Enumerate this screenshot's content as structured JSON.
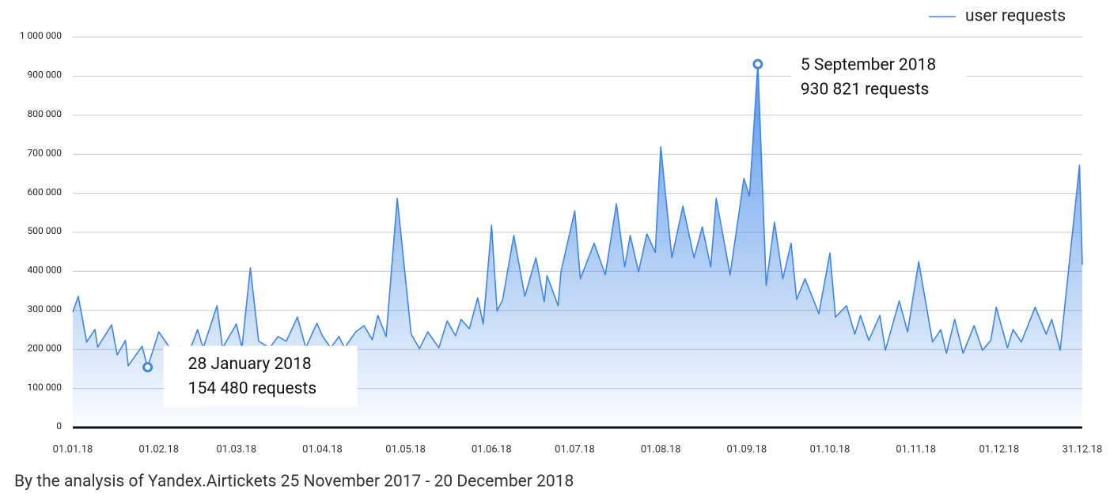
{
  "chart_data": {
    "type": "area",
    "footer": "By the analysis of Yandex.Airtickets 25 November 2017 - 20 December 2018",
    "x": [
      "2018-01-01",
      "2018-01-03",
      "2018-01-06",
      "2018-01-09",
      "2018-01-10",
      "2018-01-15",
      "2018-01-17",
      "2018-01-20",
      "2018-01-21",
      "2018-01-26",
      "2018-01-28",
      "2018-02-01",
      "2018-02-05",
      "2018-02-09",
      "2018-02-12",
      "2018-02-15",
      "2018-02-17",
      "2018-02-22",
      "2018-02-24",
      "2018-03-01",
      "2018-03-03",
      "2018-03-06",
      "2018-03-09",
      "2018-03-13",
      "2018-03-16",
      "2018-03-19",
      "2018-03-23",
      "2018-03-26",
      "2018-03-30",
      "2018-04-01",
      "2018-04-04",
      "2018-04-07",
      "2018-04-09",
      "2018-04-13",
      "2018-04-16",
      "2018-04-19",
      "2018-04-21",
      "2018-04-24",
      "2018-04-28",
      "2018-05-03",
      "2018-05-06",
      "2018-05-09",
      "2018-05-13",
      "2018-05-16",
      "2018-05-19",
      "2018-05-21",
      "2018-05-24",
      "2018-05-27",
      "2018-05-29",
      "2018-06-01",
      "2018-06-03",
      "2018-06-05",
      "2018-06-09",
      "2018-06-13",
      "2018-06-17",
      "2018-06-20",
      "2018-06-21",
      "2018-06-25",
      "2018-06-26",
      "2018-07-01",
      "2018-07-03",
      "2018-07-08",
      "2018-07-12",
      "2018-07-16",
      "2018-07-19",
      "2018-07-21",
      "2018-07-24",
      "2018-07-27",
      "2018-07-30",
      "2018-08-01",
      "2018-08-05",
      "2018-08-09",
      "2018-08-13",
      "2018-08-16",
      "2018-08-19",
      "2018-08-21",
      "2018-08-26",
      "2018-08-31",
      "2018-09-02",
      "2018-09-05",
      "2018-09-08",
      "2018-09-11",
      "2018-09-14",
      "2018-09-17",
      "2018-09-19",
      "2018-09-22",
      "2018-09-27",
      "2018-10-01",
      "2018-10-03",
      "2018-10-07",
      "2018-10-10",
      "2018-10-12",
      "2018-10-15",
      "2018-10-19",
      "2018-10-21",
      "2018-10-26",
      "2018-10-29",
      "2018-11-02",
      "2018-11-07",
      "2018-11-10",
      "2018-11-12",
      "2018-11-15",
      "2018-11-18",
      "2018-11-22",
      "2018-11-25",
      "2018-11-28",
      "2018-11-30",
      "2018-12-04",
      "2018-12-06",
      "2018-12-09",
      "2018-12-14",
      "2018-12-18",
      "2018-12-20",
      "2018-12-23",
      "2018-12-30",
      "2018-12-31"
    ],
    "series": [
      {
        "name": "user requests",
        "color": "#3d85e6",
        "values": [
          296000,
          336000,
          219000,
          251000,
          206000,
          263000,
          186000,
          223000,
          158000,
          208000,
          154480,
          245000,
          204000,
          208000,
          194000,
          251000,
          204000,
          312000,
          204000,
          265000,
          204000,
          409000,
          221000,
          204000,
          233000,
          221000,
          283000,
          204000,
          267000,
          235000,
          204000,
          233000,
          204000,
          245000,
          261000,
          225000,
          287000,
          233000,
          587000,
          239000,
          202000,
          245000,
          204000,
          273000,
          235000,
          277000,
          253000,
          332000,
          265000,
          518000,
          298000,
          328000,
          492000,
          336000,
          435000,
          322000,
          389000,
          312000,
          399000,
          555000,
          381000,
          472000,
          391000,
          573000,
          411000,
          492000,
          399000,
          496000,
          449000,
          719000,
          435000,
          567000,
          435000,
          514000,
          411000,
          587000,
          391000,
          638000,
          593000,
          930821,
          364000,
          526000,
          381000,
          472000,
          328000,
          381000,
          292000,
          447000,
          283000,
          312000,
          239000,
          287000,
          223000,
          287000,
          198000,
          324000,
          245000,
          425000,
          219000,
          251000,
          190000,
          277000,
          190000,
          261000,
          198000,
          223000,
          308000,
          204000,
          251000,
          219000,
          308000,
          239000,
          277000,
          198000,
          672000,
          417000
        ]
      }
    ],
    "xlim": [
      "2018-01-01",
      "2018-12-31"
    ],
    "xticks": [
      {
        "value": "2018-01-01",
        "label": "01.01.18"
      },
      {
        "value": "2018-02-01",
        "label": "01.02.18"
      },
      {
        "value": "2018-03-01",
        "label": "01.03.18"
      },
      {
        "value": "2018-04-01",
        "label": "01.04.18"
      },
      {
        "value": "2018-05-01",
        "label": "01.05.18"
      },
      {
        "value": "2018-06-01",
        "label": "01.06.18"
      },
      {
        "value": "2018-07-01",
        "label": "01.07.18"
      },
      {
        "value": "2018-08-01",
        "label": "01.08.18"
      },
      {
        "value": "2018-09-01",
        "label": "01.09.18"
      },
      {
        "value": "2018-10-01",
        "label": "01.10.18"
      },
      {
        "value": "2018-11-01",
        "label": "01.11.18"
      },
      {
        "value": "2018-12-01",
        "label": "01.12.18"
      },
      {
        "value": "2018-12-31",
        "label": "31.12.18"
      }
    ],
    "ylim": [
      0,
      1000000
    ],
    "yticks": [
      0,
      {
        "value": 100000,
        "label": "100 000"
      },
      {
        "value": 200000,
        "label": "200 000"
      },
      {
        "value": 300000,
        "label": "300 000"
      },
      {
        "value": 400000,
        "label": "400 000"
      },
      {
        "value": 500000,
        "label": "500 000"
      },
      {
        "value": 600000,
        "label": "600 000"
      },
      {
        "value": 700000,
        "label": "700 000"
      },
      {
        "value": 800000,
        "label": "800 000"
      },
      {
        "value": 900000,
        "label": "900 000"
      },
      {
        "value": 1000000,
        "label": "1 000 000"
      }
    ],
    "grid": true,
    "legend": "top-right",
    "annotations": [
      {
        "x": "2018-01-28",
        "lines": [
          "28 January 2018",
          "154 480 requests"
        ]
      },
      {
        "x": "2018-09-05",
        "lines": [
          "5 September 2018",
          "930 821 requests"
        ]
      }
    ]
  }
}
